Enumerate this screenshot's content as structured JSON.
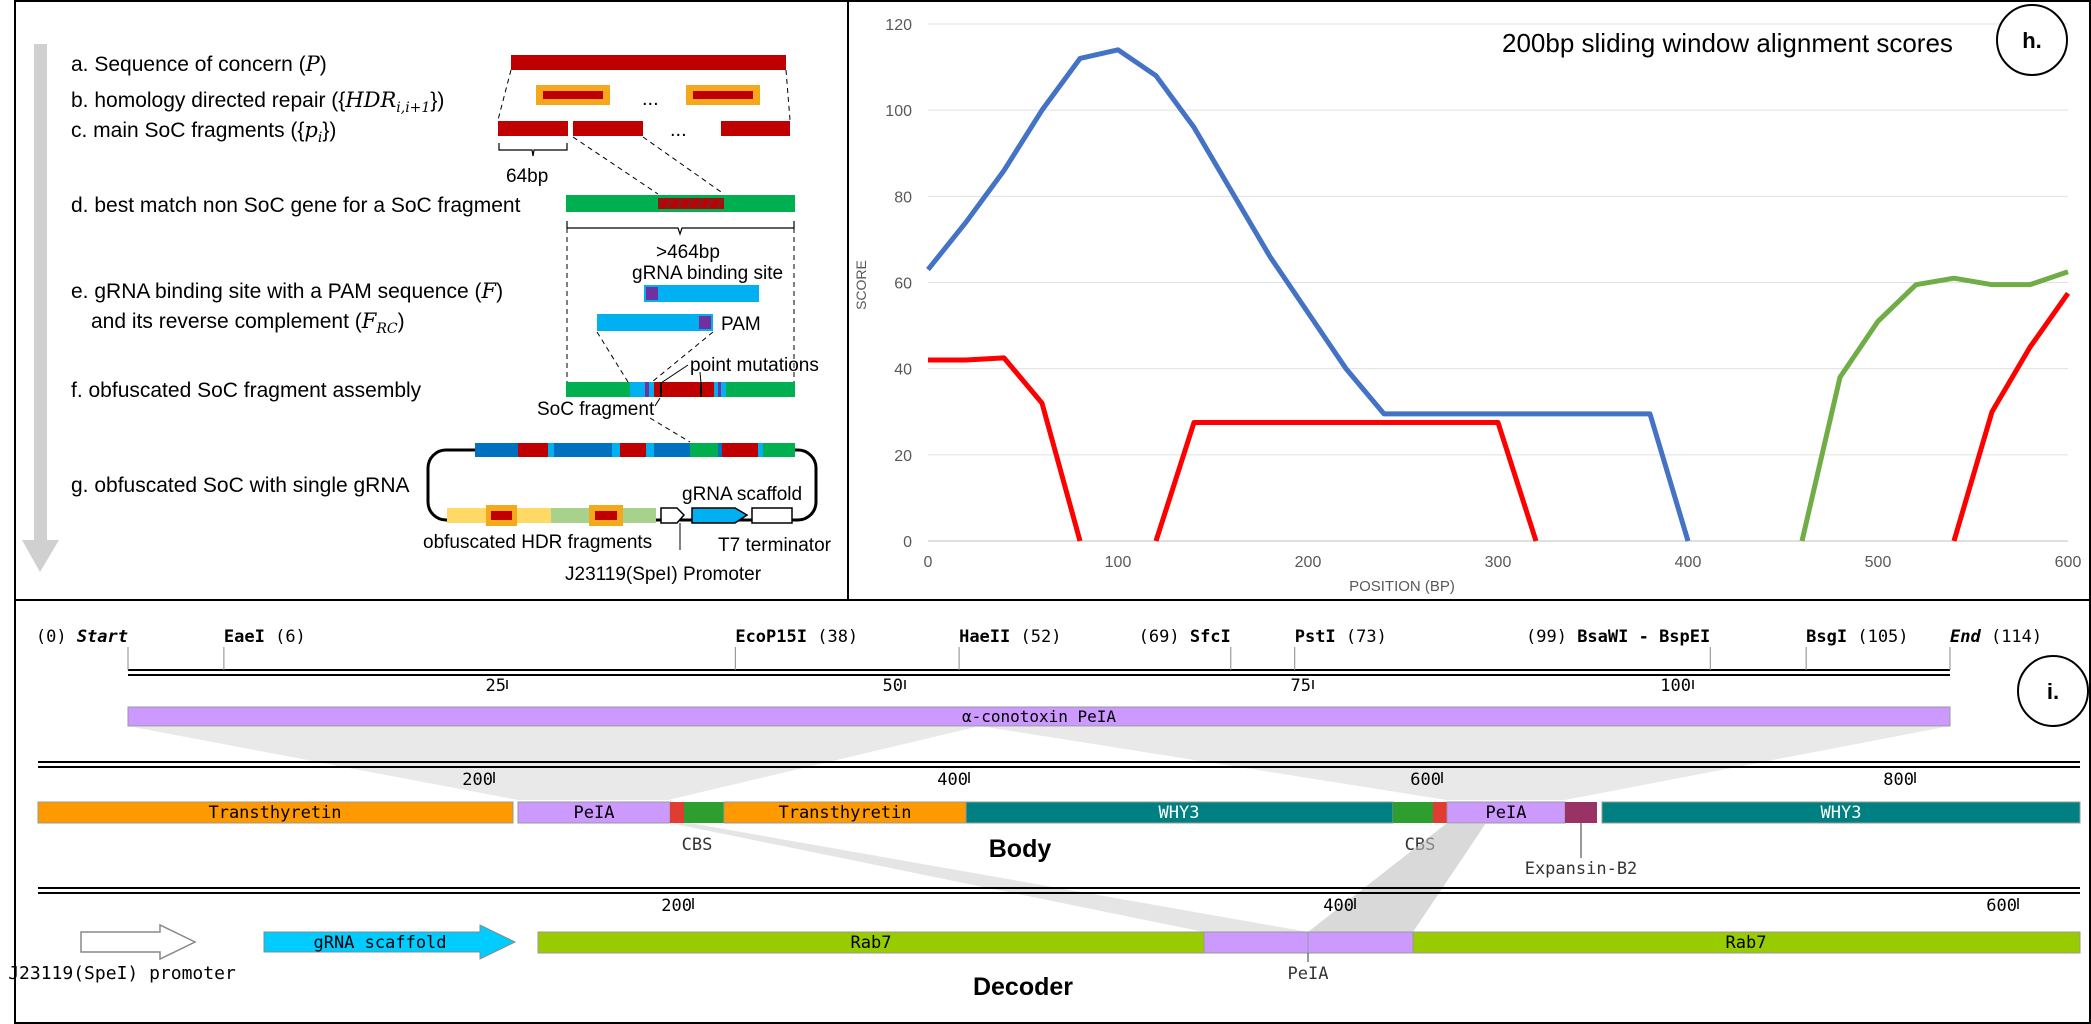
{
  "panel_g_labels": {
    "a": "a. Sequence of concern (",
    "a_sym": "P",
    "a_end": ")",
    "b": "b. homology directed repair ({",
    "b_sym": "HDR",
    "b_sub": "i,i+1",
    "b_end": "})",
    "c": "c. main SoC fragments ({",
    "c_sym": "p",
    "c_sub": "i",
    "c_end": "})",
    "d": "d. best match non SoC gene for a SoC fragment",
    "e1": "e. gRNA binding site with a PAM sequence (",
    "e1_sym": "F",
    "e1_end": ")",
    "e2": "and its reverse complement (",
    "e2_sym": "F",
    "e2_sub": "RC",
    "e2_end": ")",
    "f": "f. obfuscated SoC fragment assembly",
    "g": "g. obfuscated SoC with single gRNA",
    "ellipsis": "...",
    "bp64": "64bp",
    "bp464": ">464bp",
    "grna_site": "gRNA binding site",
    "pam": "PAM",
    "point_mutations": "point mutations",
    "soc_fragment": "SoC fragment",
    "grna_scaffold": "gRNA scaffold",
    "hdr_fragments": "obfuscated HDR fragments",
    "t7": "T7 terminator",
    "promoter": "J23119(SpeI) Promoter"
  },
  "panel_h": {
    "tag": "h.",
    "chart_data": {
      "type": "line",
      "title": "200bp sliding window alignment scores",
      "xlabel": "POSITION (BP)",
      "ylabel": "SCORE",
      "xlim": [
        0,
        600
      ],
      "ylim": [
        0,
        120
      ],
      "xticks": [
        0,
        100,
        200,
        300,
        400,
        500,
        600
      ],
      "yticks": [
        0,
        20,
        40,
        60,
        80,
        100,
        120
      ],
      "grid": true,
      "series": [
        {
          "color": "#4472c4",
          "x": [
            0,
            20,
            40,
            60,
            80,
            100,
            120,
            140,
            160,
            180,
            200,
            220,
            240,
            260,
            280,
            300,
            320,
            340,
            360,
            380,
            400
          ],
          "y": [
            63,
            74,
            86,
            100,
            112,
            114,
            108,
            96,
            81,
            66,
            53,
            40,
            29.5,
            29.5,
            29.5,
            29.5,
            29.5,
            29.5,
            29.5,
            29.5,
            0
          ]
        },
        {
          "color": "#ff0000",
          "x": [
            0,
            20,
            40,
            60,
            80
          ],
          "y": [
            42,
            42,
            42.5,
            32,
            0
          ]
        },
        {
          "color": "#ff0000",
          "x": [
            120,
            140,
            160,
            180,
            200,
            220,
            240,
            260,
            280,
            300,
            320
          ],
          "y": [
            0,
            27.5,
            27.5,
            27.5,
            27.5,
            27.5,
            27.5,
            27.5,
            27.5,
            27.5,
            0
          ]
        },
        {
          "color": "#70ad47",
          "x": [
            460,
            480,
            500,
            520,
            540,
            560,
            580,
            600
          ],
          "y": [
            0,
            38,
            51,
            59.5,
            61,
            59.5,
            59.5,
            62.5
          ]
        },
        {
          "color": "#ff0000",
          "x": [
            540,
            560,
            580,
            600
          ],
          "y": [
            0,
            30,
            45,
            57.5
          ]
        }
      ]
    }
  },
  "panel_i": {
    "tag": "i.",
    "top_ruler": {
      "sites": [
        {
          "num": "(0)",
          "name": "Start",
          "pos": 0
        },
        {
          "name": "EaeI",
          "num": "(6)",
          "pos": 6
        },
        {
          "name": "EcoP15I",
          "num": "(38)",
          "pos": 38
        },
        {
          "name": "HaeII",
          "num": "(52)",
          "pos": 52
        },
        {
          "num": "(69)",
          "name": "SfcI",
          "pos": 69
        },
        {
          "name": "PstI",
          "num": "(73)",
          "pos": 73
        },
        {
          "num": "(99)",
          "name": "BsaWI - BspEI",
          "pos": 99
        },
        {
          "name": "BsgI",
          "num": "(105)",
          "pos": 105
        },
        {
          "name": "End",
          "num": "(114)",
          "pos": 114
        }
      ],
      "ticks": [
        "25",
        "50",
        "75",
        "100"
      ],
      "feature": "α-conotoxin PeIA"
    },
    "body": {
      "title": "Body",
      "ticks": [
        "200",
        "400",
        "600",
        "800"
      ],
      "segments": [
        "Transthyretin",
        "PeIA",
        "Transthyretin",
        "WHY3",
        "PeIA",
        "WHY3"
      ],
      "labels": [
        "CBS",
        "CBS",
        "Expansin-B2"
      ]
    },
    "decoder": {
      "title": "Decoder",
      "ticks": [
        "200",
        "400",
        "600"
      ],
      "promoter": "J23119(SpeI) promoter",
      "scaffold": "gRNA scaffold",
      "segments": [
        "Rab7",
        "Rab7"
      ],
      "peia": "PeIA"
    }
  },
  "colors": {
    "red": "#c00000",
    "orange_box": "#f6a81c",
    "green": "#00b050",
    "cyan": "#00b0f0",
    "purple": "#7030a0",
    "blue": "#0070c0",
    "lavender": "#cc99ff",
    "transthyretin": "#ff9900",
    "why3": "#008080",
    "rab7": "#99cc00",
    "scaffold": "#00ccff",
    "expansin": "#993366"
  }
}
